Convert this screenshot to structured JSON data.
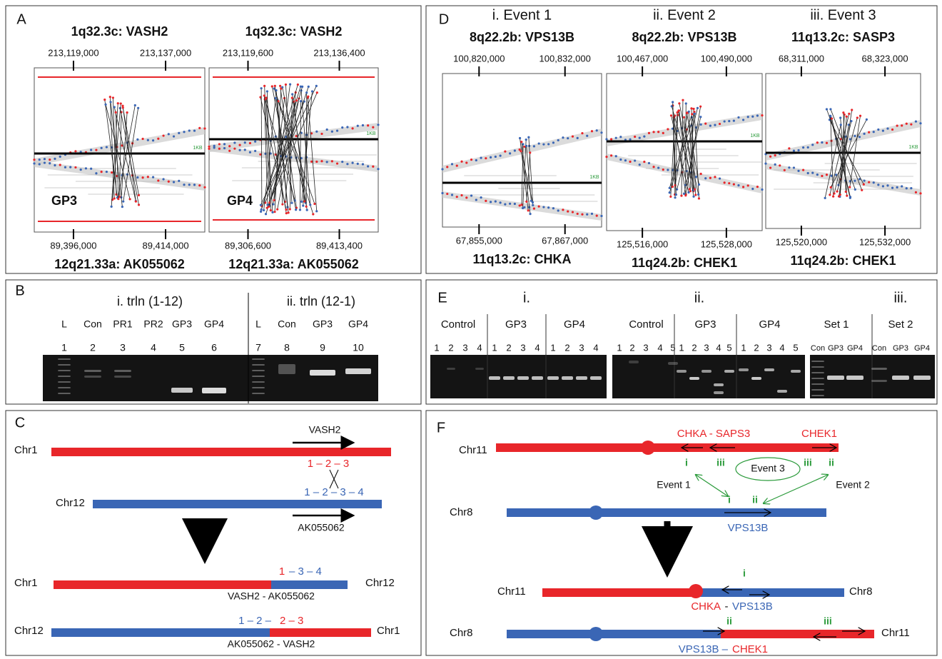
{
  "panel_a": {
    "label": "A",
    "plots": [
      {
        "title": "1q32.3c: VASH2",
        "top_ticks": [
          "213,119,000",
          "213,137,000"
        ],
        "sample": "GP3",
        "scale": "1KB",
        "bottom_ticks": [
          "89,396,000",
          "89,414,000"
        ],
        "bottom_title": "12q21.33a: AK055062"
      },
      {
        "title": "1q32.3c: VASH2",
        "top_ticks": [
          "213,119,600",
          "213,136,400"
        ],
        "sample": "GP4",
        "scale": "1KB",
        "bottom_ticks": [
          "89,306,600",
          "89,413,400"
        ],
        "bottom_title": "12q21.33a: AK055062"
      }
    ]
  },
  "panel_d": {
    "label": "D",
    "plots": [
      {
        "event": "i. Event 1",
        "title": "8q22.2b: VPS13B",
        "top_ticks": [
          "100,820,000",
          "100,832,000"
        ],
        "scale": "1KB",
        "bottom_ticks": [
          "67,855,000",
          "67,867,000"
        ],
        "bottom_title": "11q13.2c: CHKA"
      },
      {
        "event": "ii. Event 2",
        "title": "8q22.2b: VPS13B",
        "top_ticks": [
          "100,467,000",
          "100,490,000"
        ],
        "scale": "1KB",
        "bottom_ticks": [
          "125,516,000",
          "125,528,000"
        ],
        "bottom_title": "11q24.2b: CHEK1"
      },
      {
        "event": "iii. Event 3",
        "title": "11q13.2c: SASP3",
        "top_ticks": [
          "68,311,000",
          "68,323,000"
        ],
        "scale": "1KB",
        "bottom_ticks": [
          "125,520,000",
          "125,532,000"
        ],
        "bottom_title": "11q24.2b: CHEK1"
      }
    ]
  },
  "panel_b": {
    "label": "B",
    "groups": [
      {
        "title": "i. trln (1-12)",
        "lanes": [
          "L",
          "Con",
          "PR1",
          "PR2",
          "GP3",
          "GP4"
        ],
        "numbers": [
          1,
          2,
          3,
          4,
          5,
          6
        ]
      },
      {
        "title": "ii. trln (12-1)",
        "lanes": [
          "L",
          "Con",
          "GP3",
          "GP4"
        ],
        "numbers": [
          7,
          8,
          9,
          10
        ]
      }
    ]
  },
  "panel_e": {
    "label": "E",
    "groups": [
      {
        "title": "i.",
        "sets": [
          {
            "name": "Control",
            "lanes": [
              1,
              2,
              3,
              4
            ]
          },
          {
            "name": "GP3",
            "lanes": [
              1,
              2,
              3,
              4
            ]
          },
          {
            "name": "GP4",
            "lanes": [
              1,
              2,
              3,
              4
            ]
          }
        ]
      },
      {
        "title": "ii.",
        "sets": [
          {
            "name": "Control",
            "lanes": [
              1,
              2,
              3,
              4,
              5
            ]
          },
          {
            "name": "GP3",
            "lanes": [
              1,
              2,
              3,
              4,
              5
            ]
          },
          {
            "name": "GP4",
            "lanes": [
              1,
              2,
              3,
              4,
              5
            ]
          }
        ]
      },
      {
        "title": "iii.",
        "sets": [
          {
            "name": "Set 1",
            "lanes": [
              "Con",
              "GP3",
              "GP4"
            ]
          },
          {
            "name": "Set 2",
            "lanes": [
              "Con",
              "GP3",
              "GP4"
            ]
          }
        ]
      }
    ]
  },
  "panel_c": {
    "label": "C",
    "gene1": "VASH2",
    "chr1": "Chr1",
    "exons1": "1 – 2 – 3",
    "chr12": "Chr12",
    "exons12": "1 – 2 – 3 – 4",
    "gene12": "AK055062",
    "fusion1_left": "Chr1",
    "fusion1_exon_red": "1",
    "fusion1_exon_blue": "– 3 – 4",
    "fusion1_right": "Chr12",
    "fusion1_name": "VASH2 - AK055062",
    "fusion2_left": "Chr12",
    "fusion2_exon_blue": "1 – 2 –",
    "fusion2_exon_red": "2 – 3",
    "fusion2_right": "Chr1",
    "fusion2_name": "AK055062 - VASH2"
  },
  "panel_f": {
    "label": "F",
    "chr11": "Chr11",
    "genes11": "CHKA - SAPS3",
    "gene_chek1": "CHEK1",
    "bp_i": "i",
    "bp_iii": "iii",
    "event3": "Event 3",
    "bp_iii_2": "iii",
    "bp_ii": "ii",
    "event1": "Event 1",
    "event2": "Event 2",
    "bp8_i": "i",
    "bp8_ii": "ii",
    "chr8": "Chr8",
    "gene_vps13b": "VPS13B",
    "fusion1_left": "Chr11",
    "fusion1_bp": "i",
    "fusion1_red": "CHKA",
    "fusion1_dash": "-",
    "fusion1_blue": "VPS13B",
    "fusion1_right": "Chr8",
    "fusion2_left": "Chr8",
    "fusion2_bp_ii": "ii",
    "fusion2_bp_iii": "iii",
    "fusion2_right": "Chr11",
    "fusion2_blue": "VPS13B –",
    "fusion2_red": "CHEK1"
  }
}
